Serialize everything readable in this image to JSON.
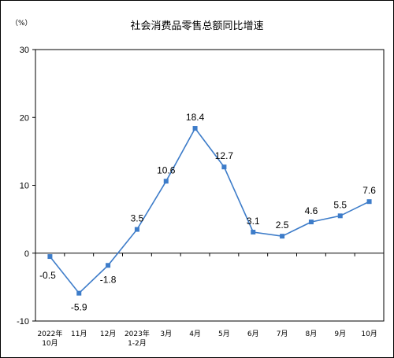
{
  "chart_data": {
    "type": "line",
    "title": "社会消费品零售总额同比增速",
    "unit": "（%）",
    "ylim": [
      -10,
      30
    ],
    "yticks": [
      "30",
      "20",
      "10",
      "0",
      "-10"
    ],
    "ytick_values": [
      30,
      20,
      10,
      0,
      -10
    ],
    "grid": false,
    "categories": [
      [
        "2022年",
        "10月"
      ],
      [
        "11月"
      ],
      [
        "12月"
      ],
      [
        "2023年",
        "1-2月"
      ],
      [
        "3月"
      ],
      [
        "4月"
      ],
      [
        "5月"
      ],
      [
        "6月"
      ],
      [
        "7月"
      ],
      [
        "8月"
      ],
      [
        "9月"
      ],
      [
        "10月"
      ]
    ],
    "values": [
      -0.5,
      -5.9,
      -1.8,
      3.5,
      10.6,
      18.4,
      12.7,
      3.1,
      2.5,
      4.6,
      5.5,
      7.6
    ],
    "value_labels": [
      "-0.5",
      "-5.9",
      "-1.8",
      "3.5",
      "10.6",
      "18.4",
      "12.7",
      "3.1",
      "2.5",
      "4.6",
      "5.5",
      "7.6"
    ],
    "colors": {
      "line": "#3d7cc9",
      "axis": "#000000"
    }
  }
}
